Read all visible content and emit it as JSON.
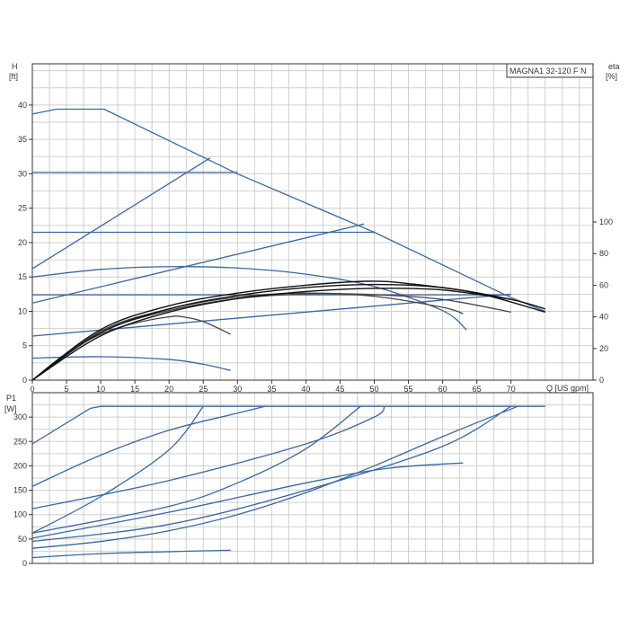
{
  "chart_data": {
    "title": "MAGNA1 32-120 F N",
    "x_axis": {
      "label": "Q [US gpm]",
      "min": 0,
      "max": 82,
      "ticks": [
        0,
        5,
        10,
        15,
        20,
        25,
        30,
        35,
        40,
        45,
        50,
        55,
        60,
        65,
        70
      ]
    },
    "panels": [
      {
        "id": "head",
        "type": "line",
        "y_axis_left": {
          "label_line1": "H",
          "label_line2": "[ft]",
          "min": 0,
          "max": 46,
          "ticks": [
            0,
            5,
            10,
            15,
            20,
            25,
            30,
            35,
            40
          ]
        },
        "y_axis_right": {
          "label_line1": "eta",
          "label_line2": "[%]",
          "min": 0,
          "max": 200,
          "ticks": [
            0,
            20,
            40,
            60,
            80,
            100
          ]
        },
        "series": [
          {
            "kind": "max-curve",
            "axis": "left",
            "color": "#3a67a0",
            "points": [
              [
                0,
                38.7
              ],
              [
                3.5,
                39.4
              ],
              [
                10.5,
                39.4
              ],
              [
                30,
                30
              ],
              [
                50,
                21.5
              ],
              [
                70,
                12
              ],
              [
                75,
                10
              ]
            ]
          },
          {
            "kind": "constant-pressure",
            "axis": "left",
            "color": "#3a67a0",
            "points": [
              [
                0,
                30.2
              ],
              [
                30,
                30.2
              ]
            ]
          },
          {
            "kind": "constant-pressure",
            "axis": "left",
            "color": "#3a67a0",
            "points": [
              [
                0,
                21.5
              ],
              [
                50,
                21.5
              ]
            ]
          },
          {
            "kind": "constant-pressure",
            "axis": "left",
            "color": "#3a67a0",
            "points": [
              [
                0,
                12.4
              ],
              [
                70,
                12.4
              ]
            ]
          },
          {
            "kind": "proportional-pressure",
            "axis": "left",
            "color": "#3a67a0",
            "points": [
              [
                0,
                16.2
              ],
              [
                26,
                32.3
              ]
            ]
          },
          {
            "kind": "proportional-pressure",
            "axis": "left",
            "color": "#3a67a0",
            "points": [
              [
                0,
                11.2
              ],
              [
                48.5,
                22.7
              ]
            ]
          },
          {
            "kind": "proportional-pressure",
            "axis": "left",
            "color": "#3a67a0",
            "points": [
              [
                0,
                6.4
              ],
              [
                70,
                12.5
              ]
            ]
          },
          {
            "kind": "fixed-speed",
            "axis": "left",
            "color": "#3a67a0",
            "points": [
              [
                0,
                15
              ],
              [
                10,
                16.1
              ],
              [
                20,
                16.5
              ],
              [
                30,
                16.3
              ],
              [
                40,
                15.4
              ],
              [
                50,
                13.6
              ],
              [
                60,
                10.1
              ],
              [
                63.5,
                7.3
              ]
            ]
          },
          {
            "kind": "fixed-speed",
            "axis": "left",
            "color": "#3a67a0",
            "points": [
              [
                0,
                3.2
              ],
              [
                10,
                3.4
              ],
              [
                20,
                3
              ],
              [
                25,
                2.3
              ],
              [
                29,
                1.4
              ]
            ]
          },
          {
            "kind": "efficiency",
            "axis": "right",
            "color": "#444444",
            "points": [
              [
                0,
                0
              ],
              [
                5,
                17
              ],
              [
                10,
                29
              ],
              [
                15,
                36
              ],
              [
                20,
                40
              ],
              [
                22,
                40
              ],
              [
                25,
                37
              ],
              [
                29,
                29
              ]
            ]
          },
          {
            "kind": "efficiency",
            "axis": "right",
            "color": "#444444",
            "points": [
              [
                0,
                0
              ],
              [
                10,
                31
              ],
              [
                20,
                45
              ],
              [
                30,
                52.5
              ],
              [
                40,
                55
              ],
              [
                50,
                53
              ],
              [
                60,
                46
              ],
              [
                63,
                42
              ]
            ]
          },
          {
            "kind": "efficiency",
            "axis": "right",
            "color": "#444444",
            "points": [
              [
                0,
                0
              ],
              [
                10,
                30
              ],
              [
                20,
                44
              ],
              [
                30,
                51.5
              ],
              [
                40,
                54.5
              ],
              [
                50,
                54
              ],
              [
                60,
                51
              ],
              [
                70,
                43
              ]
            ]
          },
          {
            "kind": "efficiency",
            "axis": "right",
            "color": "#111111",
            "points": [
              [
                0,
                0
              ],
              [
                10,
                32
              ],
              [
                20,
                47
              ],
              [
                30,
                55
              ],
              [
                40,
                60
              ],
              [
                49,
                62.5
              ],
              [
                55,
                61
              ],
              [
                65,
                55
              ],
              [
                75,
                43
              ]
            ]
          },
          {
            "kind": "efficiency",
            "axis": "right",
            "color": "#111111",
            "points": [
              [
                0,
                0
              ],
              [
                10,
                30
              ],
              [
                20,
                45
              ],
              [
                30,
                53.5
              ],
              [
                40,
                58.5
              ],
              [
                50,
                60.5
              ],
              [
                60,
                58.5
              ],
              [
                70,
                51
              ],
              [
                75,
                45
              ]
            ]
          },
          {
            "kind": "efficiency",
            "axis": "right",
            "color": "#111111",
            "points": [
              [
                0,
                0
              ],
              [
                10,
                28
              ],
              [
                20,
                43
              ],
              [
                30,
                51.5
              ],
              [
                40,
                56
              ],
              [
                50,
                58
              ],
              [
                60,
                57
              ],
              [
                70,
                51
              ]
            ]
          }
        ]
      },
      {
        "id": "power",
        "type": "line",
        "y_axis_left": {
          "label_line1": "P1",
          "label_line2": "[W]",
          "min": 0,
          "max": 350,
          "ticks": [
            0,
            50,
            100,
            150,
            200,
            250,
            300
          ]
        },
        "series": [
          {
            "kind": "max-power",
            "color": "#3a67a0",
            "points": [
              [
                0,
                245
              ],
              [
                8.5,
                318
              ],
              [
                10,
                322
              ],
              [
                75,
                322
              ]
            ]
          },
          {
            "kind": "power",
            "color": "#3a67a0",
            "points": [
              [
                0,
                158
              ],
              [
                10,
                222
              ],
              [
                20,
                273
              ],
              [
                30,
                308
              ],
              [
                34,
                322
              ]
            ]
          },
          {
            "kind": "power",
            "color": "#3a67a0",
            "points": [
              [
                0,
                62
              ],
              [
                10,
                137
              ],
              [
                20,
                233
              ],
              [
                25,
                322
              ]
            ]
          },
          {
            "kind": "power",
            "color": "#3a67a0",
            "points": [
              [
                0,
                112
              ],
              [
                20,
                170
              ],
              [
                40,
                245
              ],
              [
                50,
                300
              ],
              [
                51.5,
                322
              ]
            ]
          },
          {
            "kind": "power",
            "color": "#3a67a0",
            "points": [
              [
                0,
                62
              ],
              [
                20,
                117
              ],
              [
                30,
                165
              ],
              [
                40,
                235
              ],
              [
                48,
                322
              ]
            ]
          },
          {
            "kind": "power",
            "color": "#3a67a0",
            "points": [
              [
                0,
                52
              ],
              [
                20,
                105
              ],
              [
                40,
                165
              ],
              [
                52,
                195
              ],
              [
                63,
                206
              ]
            ]
          },
          {
            "kind": "power",
            "color": "#3a67a0",
            "points": [
              [
                0,
                45
              ],
              [
                20,
                80
              ],
              [
                40,
                150
              ],
              [
                60,
                240
              ],
              [
                70,
                322
              ]
            ]
          },
          {
            "kind": "power",
            "color": "#3a67a0",
            "points": [
              [
                0,
                31
              ],
              [
                10,
                45
              ],
              [
                20,
                67
              ],
              [
                30,
                100
              ],
              [
                40,
                145
              ],
              [
                50,
                200
              ],
              [
                60,
                260
              ],
              [
                71,
                322
              ]
            ]
          },
          {
            "kind": "power",
            "color": "#3a67a0",
            "points": [
              [
                0,
                12
              ],
              [
                10,
                20
              ],
              [
                20,
                24
              ],
              [
                29,
                27
              ]
            ]
          }
        ]
      }
    ]
  }
}
